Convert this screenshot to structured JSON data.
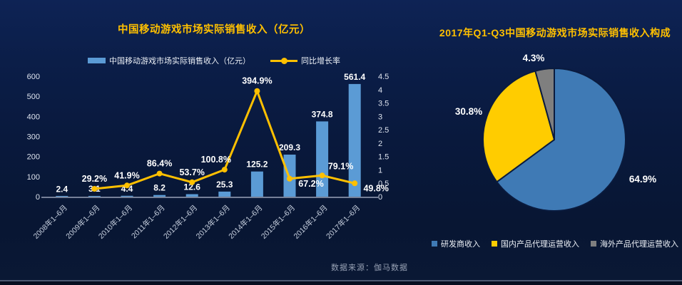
{
  "page": {
    "source_note": "数据来源：伽马数据"
  },
  "chart_data": [
    {
      "type": "combo",
      "title": "中国移动游戏市场实际销售收入（亿元）",
      "categories": [
        "2008年1–6月",
        "2009年1–6月",
        "2010年1–6月",
        "2011年1–6月",
        "2012年1–6月",
        "2013年1–6月",
        "2014年1–6月",
        "2015年1–6月",
        "2016年1–6月",
        "2017年1–6月"
      ],
      "series": [
        {
          "name": "中国移动游戏市场实际销售收入（亿元）",
          "type": "bar",
          "color": "#5B9BD5",
          "values": [
            2.4,
            3.1,
            4.4,
            8.2,
            12.6,
            25.3,
            125.2,
            209.3,
            374.8,
            561.4
          ]
        },
        {
          "name": "同比增长率",
          "type": "line",
          "color": "#FFC000",
          "values_percent": [
            null,
            29.2,
            41.9,
            86.4,
            53.7,
            100.8,
            394.9,
            67.2,
            79.1,
            49.8
          ],
          "label_positions": [
            null,
            "above",
            "above",
            "above",
            "above",
            "above-left",
            "above",
            "below-right",
            "above-right",
            "below-right"
          ]
        }
      ],
      "left_axis": {
        "min": 0,
        "max": 600,
        "step": 100
      },
      "right_axis": {
        "min": 0,
        "max": 4.5,
        "step": 0.5
      },
      "grid": false,
      "legend_position": "top"
    },
    {
      "type": "pie",
      "title": "2017年Q1-Q3中国移动游戏市场实际销售收入构成",
      "slices": [
        {
          "label": "研发商收入",
          "value": 64.9,
          "display": "64.9%",
          "color": "#3F7AB5"
        },
        {
          "label": "国内产品代理运营收入",
          "value": 30.8,
          "display": "30.8%",
          "color": "#FFCC00"
        },
        {
          "label": "海外产品代理运营收入",
          "value": 4.3,
          "display": "4.3%",
          "color": "#7F7F7F"
        }
      ],
      "start_angle_deg": -90,
      "direction": "clockwise",
      "legend_position": "bottom"
    }
  ],
  "colors": {
    "background_top": "#0E2355",
    "background_bottom": "#081633",
    "title_gold": "#FFC000",
    "bar_blue": "#5B9BD5",
    "line_gold": "#FFC000",
    "pie_blue": "#3F7AB5",
    "pie_yellow": "#FFCC00",
    "pie_gray": "#7F7F7F",
    "axis_text": "#DDE3EE",
    "data_label_text": "#FFFFFF",
    "source_text": "#97A1B4"
  }
}
